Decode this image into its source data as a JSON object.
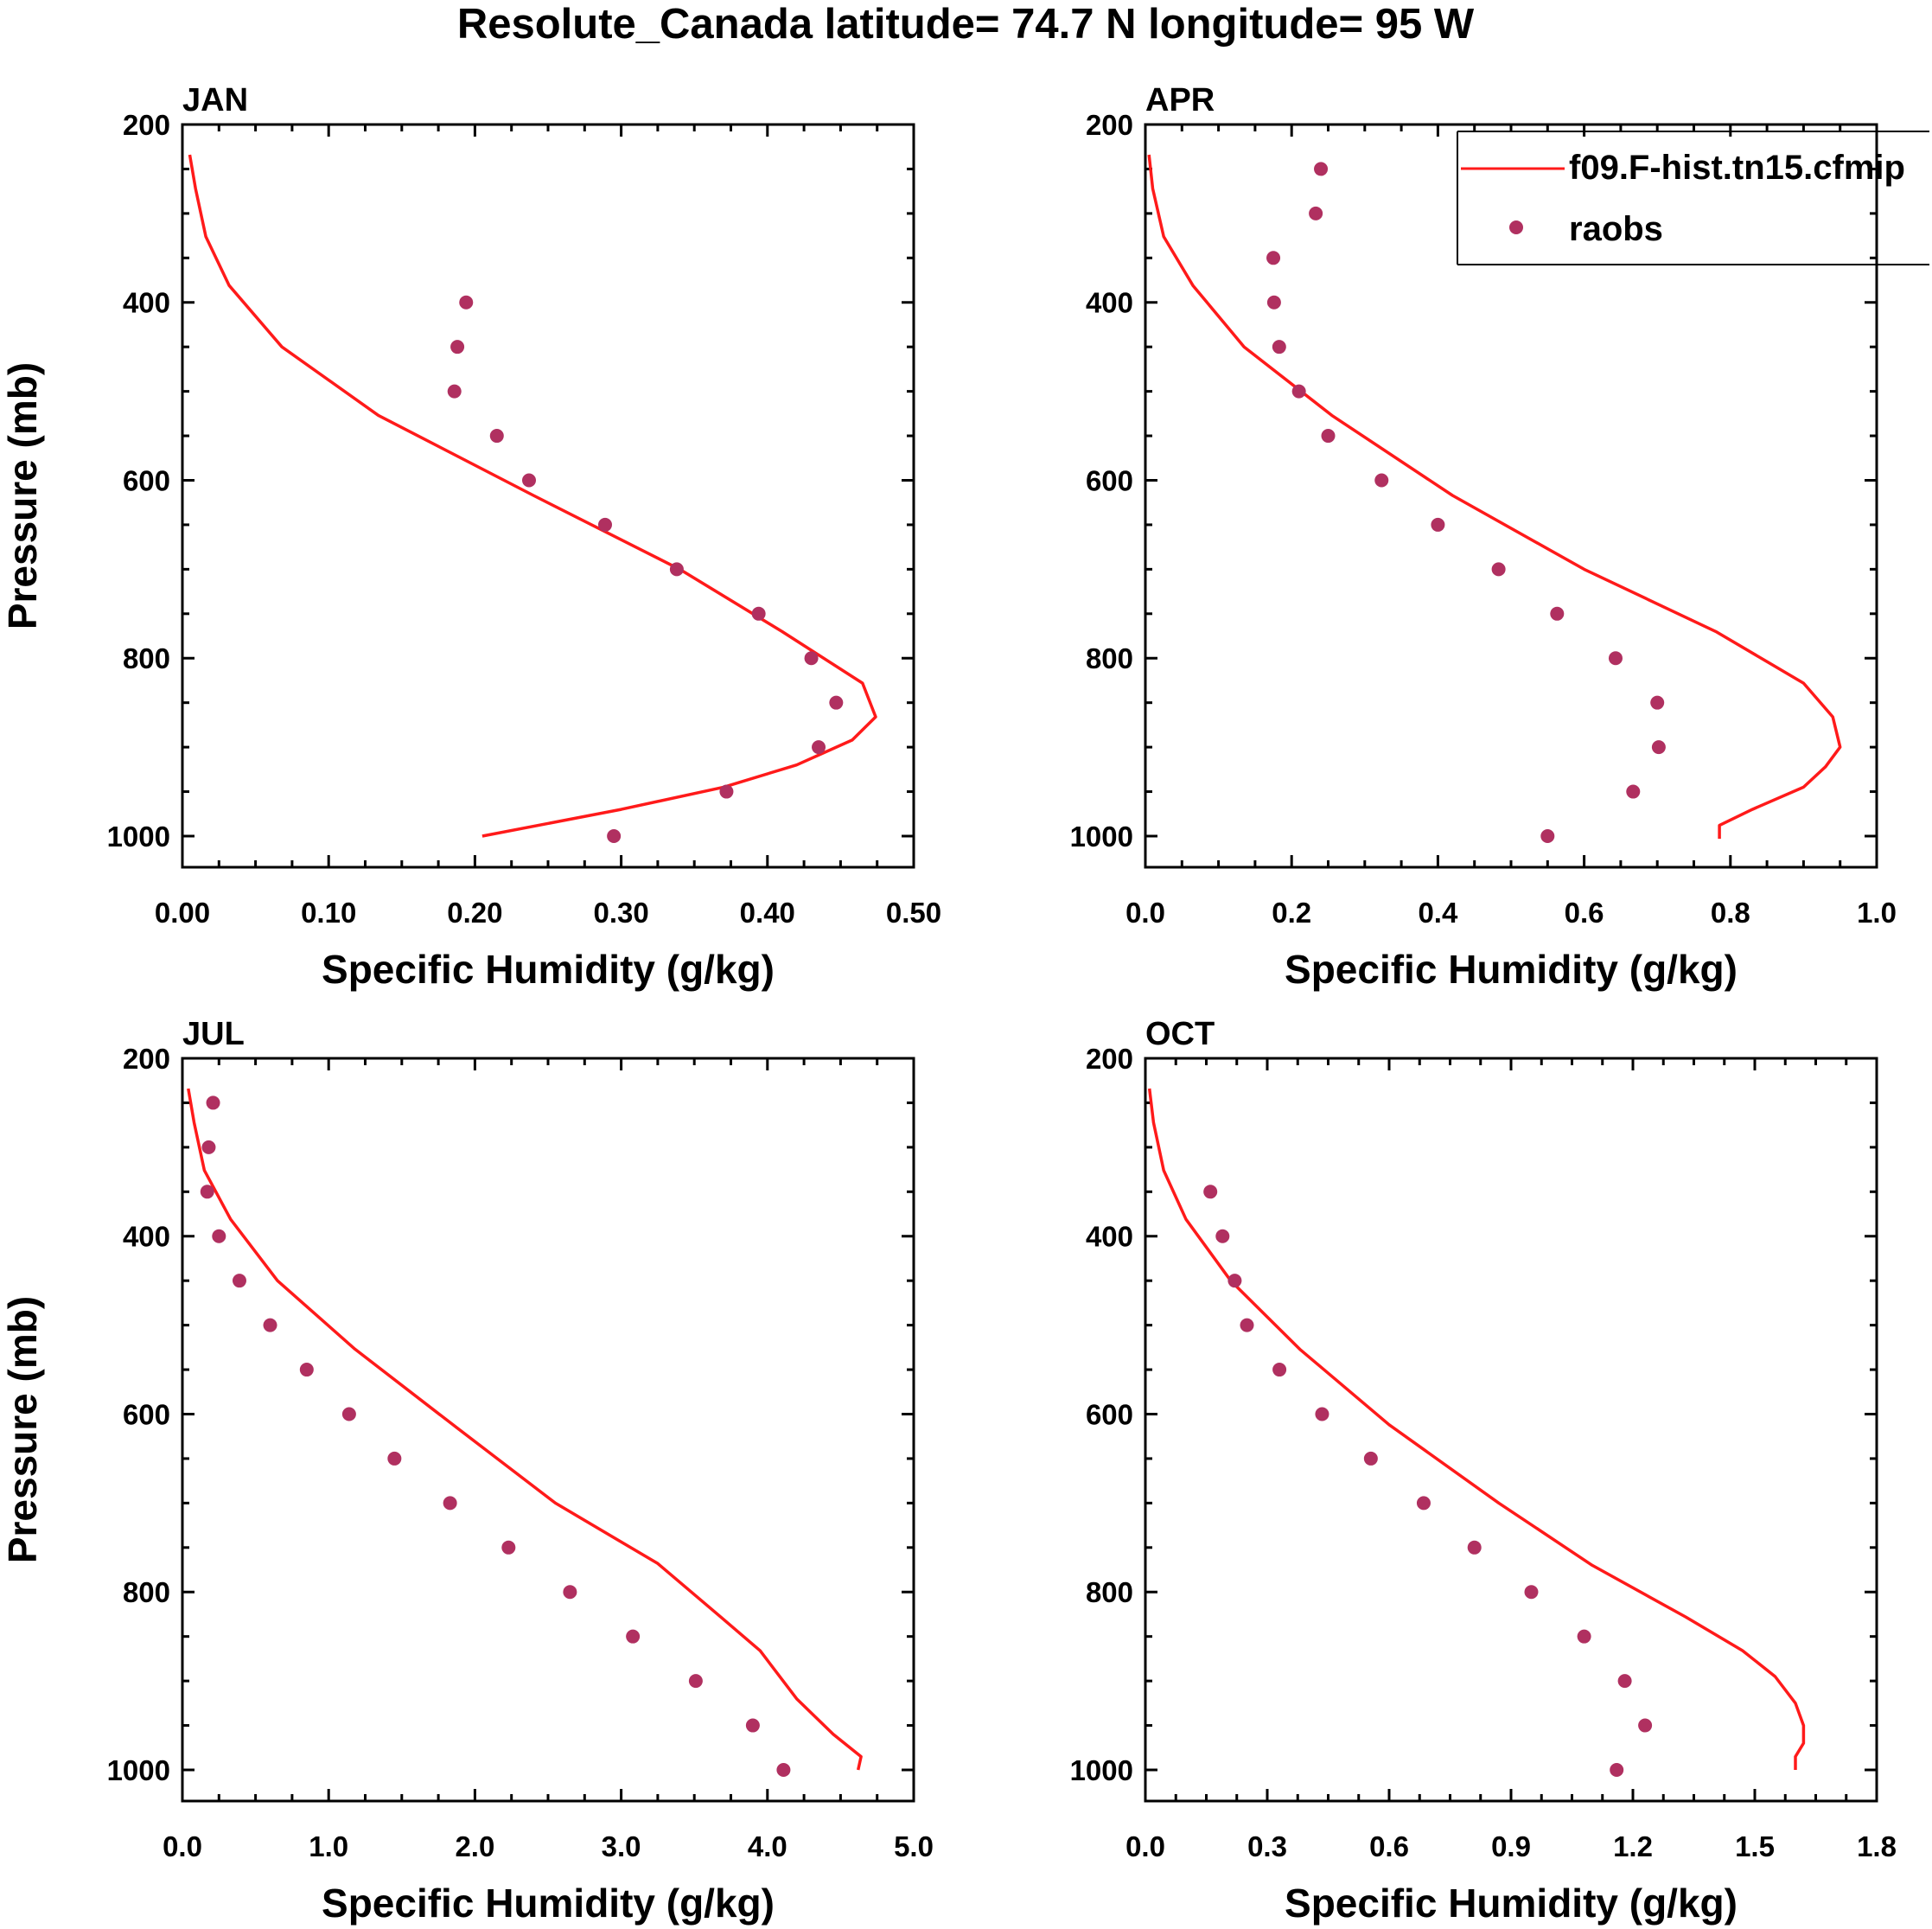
{
  "figure": {
    "title": "Resolute_Canada  latitude= 74.7 N longitude= 95 W"
  },
  "colors": {
    "model": "#ff1a1a",
    "raobs": "#b03060",
    "axis": "#000000"
  },
  "legend": {
    "model_label": "f09.F-hist.tn15.cfmip",
    "raobs_label": "raobs",
    "placement": "top-right of APR panel"
  },
  "chart_data": [
    {
      "type": "line+scatter",
      "title": "JAN",
      "xlabel": "Specific Humidity (g/kg)",
      "ylabel": "Pressure (mb)",
      "xlim": [
        0,
        0.5
      ],
      "ylim": [
        200,
        1035
      ],
      "xticks": [
        0,
        0.1,
        0.2,
        0.3,
        0.4,
        0.5
      ],
      "xtick_labels": [
        "0.00",
        "0.10",
        "0.20",
        "0.30",
        "0.40",
        "0.50"
      ],
      "xminor": 0.025,
      "yticks": [
        200,
        400,
        600,
        800,
        1000
      ],
      "ytick_labels": [
        "200",
        "400",
        "600",
        "800",
        "1000"
      ],
      "model": {
        "q": [
          0.005,
          0.009,
          0.016,
          0.032,
          0.068,
          0.134,
          0.24,
          0.34,
          0.41,
          0.465,
          0.474,
          0.458,
          0.42,
          0.37,
          0.3,
          0.205
        ],
        "p": [
          234,
          272,
          326,
          381,
          450,
          527,
          617,
          700,
          770,
          828,
          866,
          892,
          920,
          945,
          970,
          1000
        ]
      },
      "raobs": {
        "q": [
          0.194,
          0.188,
          0.186,
          0.215,
          0.237,
          0.289,
          0.338,
          0.394,
          0.43,
          0.447,
          0.435,
          0.372,
          0.295
        ],
        "p": [
          400,
          450,
          500,
          550,
          600,
          650,
          700,
          750,
          800,
          850,
          900,
          950,
          1000
        ]
      }
    },
    {
      "type": "line+scatter",
      "title": "APR",
      "xlabel": "Specific Humidity (g/kg)",
      "ylabel": "",
      "xlim": [
        0,
        1.0
      ],
      "ylim": [
        200,
        1035
      ],
      "xticks": [
        0,
        0.2,
        0.4,
        0.6,
        0.8,
        1.0
      ],
      "xtick_labels": [
        "0.0",
        "0.2",
        "0.4",
        "0.6",
        "0.8",
        "1.0"
      ],
      "xminor": 0.05,
      "yticks": [
        200,
        400,
        600,
        800,
        1000
      ],
      "ytick_labels": [
        "200",
        "400",
        "600",
        "800",
        "1000"
      ],
      "model": {
        "q": [
          0.005,
          0.01,
          0.025,
          0.065,
          0.135,
          0.255,
          0.42,
          0.6,
          0.78,
          0.9,
          0.94,
          0.95,
          0.93,
          0.9,
          0.83,
          0.785,
          0.785
        ],
        "p": [
          234,
          272,
          326,
          381,
          450,
          527,
          617,
          700,
          770,
          828,
          866,
          900,
          922,
          945,
          970,
          988,
          1003
        ]
      },
      "raobs": {
        "q": [
          0.24,
          0.233,
          0.175,
          0.176,
          0.183,
          0.21,
          0.25,
          0.323,
          0.4,
          0.483,
          0.563,
          0.643,
          0.7,
          0.702,
          0.667,
          0.55
        ],
        "p": [
          250,
          300,
          350,
          400,
          450,
          500,
          550,
          600,
          650,
          700,
          750,
          800,
          850,
          900,
          950,
          1000
        ]
      }
    },
    {
      "type": "line+scatter",
      "title": "JUL",
      "xlabel": "Specific Humidity (g/kg)",
      "ylabel": "Pressure (mb)",
      "xlim": [
        0,
        5.0
      ],
      "ylim": [
        200,
        1035
      ],
      "xticks": [
        0,
        1,
        2,
        3,
        4,
        5
      ],
      "xtick_labels": [
        "0.0",
        "1.0",
        "2.0",
        "3.0",
        "4.0",
        "5.0"
      ],
      "xminor": 0.25,
      "yticks": [
        200,
        400,
        600,
        800,
        1000
      ],
      "ytick_labels": [
        "200",
        "400",
        "600",
        "800",
        "1000"
      ],
      "model": {
        "q": [
          0.04,
          0.08,
          0.15,
          0.33,
          0.65,
          1.18,
          1.85,
          2.55,
          3.25,
          3.68,
          3.95,
          4.2,
          4.45,
          4.64,
          4.62
        ],
        "p": [
          234,
          272,
          326,
          381,
          450,
          527,
          612,
          700,
          768,
          828,
          866,
          920,
          960,
          985,
          1000
        ]
      },
      "raobs": {
        "q": [
          0.21,
          0.18,
          0.17,
          0.25,
          0.39,
          0.6,
          0.85,
          1.14,
          1.45,
          1.83,
          2.23,
          2.65,
          3.08,
          3.51,
          3.9,
          4.11
        ],
        "p": [
          250,
          300,
          350,
          400,
          450,
          500,
          550,
          600,
          650,
          700,
          750,
          800,
          850,
          900,
          950,
          1000
        ]
      }
    },
    {
      "type": "line+scatter",
      "title": "OCT",
      "xlabel": "Specific Humidity (g/kg)",
      "ylabel": "",
      "xlim": [
        0,
        1.8
      ],
      "ylim": [
        200,
        1035
      ],
      "xticks": [
        0,
        0.3,
        0.6,
        0.9,
        1.2,
        1.5,
        1.8
      ],
      "xtick_labels": [
        "0.0",
        "0.3",
        "0.6",
        "0.9",
        "1.2",
        "1.5",
        "1.8"
      ],
      "xminor": 0.075,
      "yticks": [
        200,
        400,
        600,
        800,
        1000
      ],
      "ytick_labels": [
        "200",
        "400",
        "600",
        "800",
        "1000"
      ],
      "model": {
        "q": [
          0.01,
          0.02,
          0.045,
          0.1,
          0.21,
          0.38,
          0.6,
          0.87,
          1.1,
          1.33,
          1.47,
          1.55,
          1.6,
          1.62,
          1.62,
          1.6,
          1.6
        ],
        "p": [
          234,
          272,
          326,
          381,
          450,
          527,
          612,
          700,
          770,
          828,
          866,
          895,
          925,
          950,
          970,
          985,
          1000
        ]
      },
      "raobs": {
        "q": [
          0.16,
          0.19,
          0.22,
          0.25,
          0.33,
          0.435,
          0.555,
          0.685,
          0.81,
          0.95,
          1.08,
          1.18,
          1.23,
          1.16
        ],
        "p": [
          350,
          400,
          450,
          500,
          550,
          600,
          650,
          700,
          750,
          800,
          850,
          900,
          950,
          1000
        ]
      }
    }
  ]
}
